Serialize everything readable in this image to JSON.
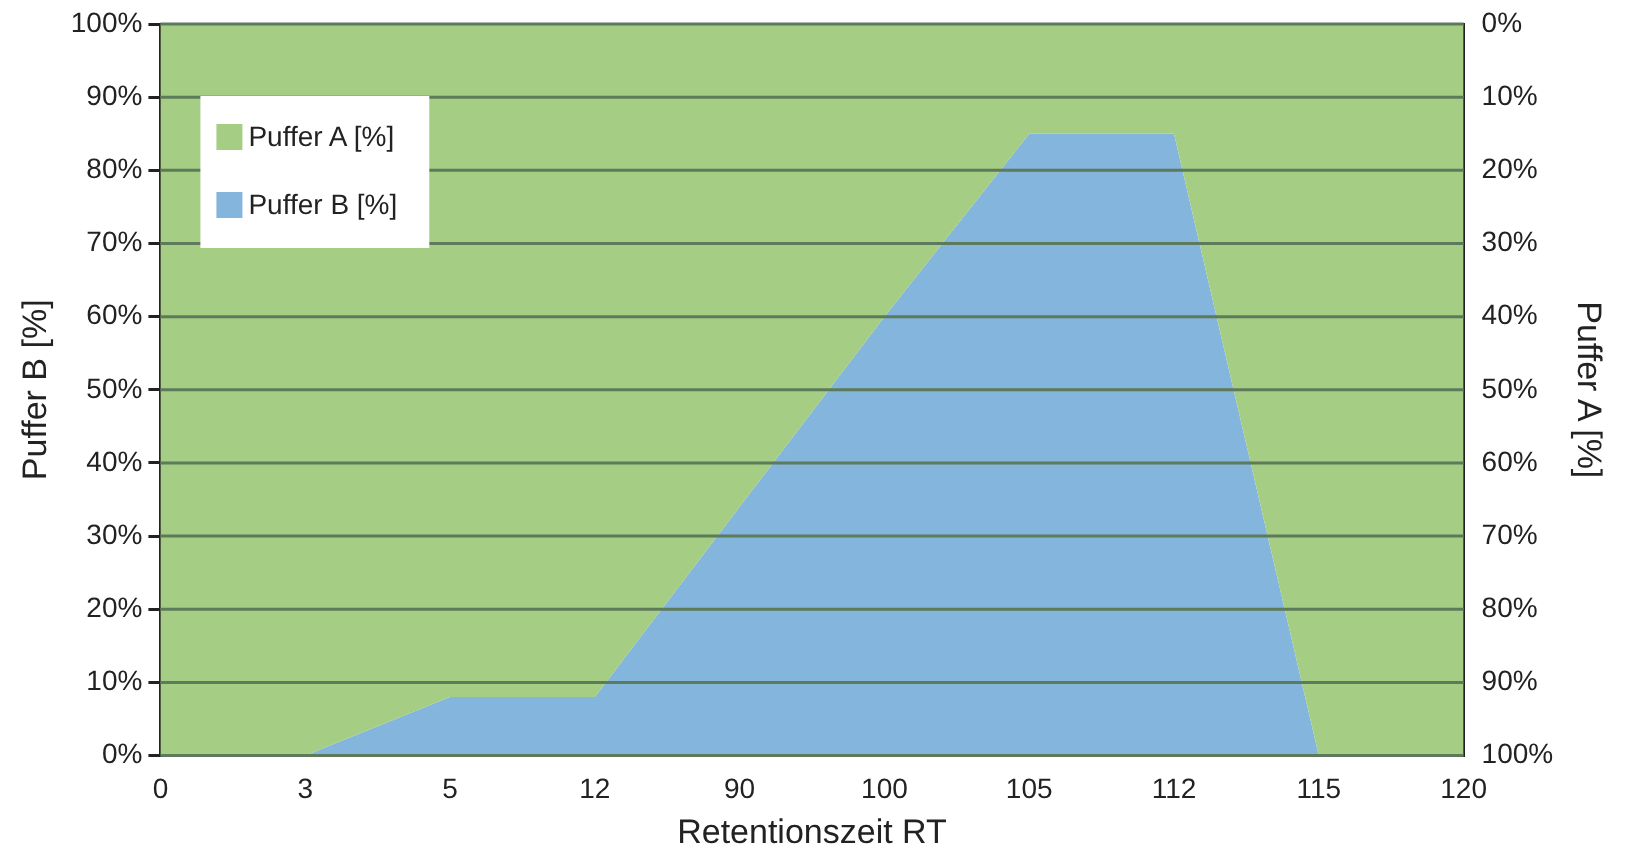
{
  "chart_data": {
    "type": "area",
    "xlabel": "Retentionszeit RT",
    "ylabel": "Puffer B [%]",
    "y2label": "Puffer A [%]",
    "categories": [
      "0",
      "3",
      "5",
      "12",
      "90",
      "100",
      "105",
      "112",
      "115",
      "120"
    ],
    "series": [
      {
        "name": "Puffer A [%]",
        "color": "#a6cd84",
        "axis": "y2",
        "values": [
          100,
          100,
          92,
          92,
          66,
          40,
          15,
          15,
          100,
          100
        ]
      },
      {
        "name": "Puffer B [%]",
        "color": "#83b5dd",
        "values": [
          0,
          0,
          8,
          8,
          34,
          60,
          85,
          85,
          0,
          0
        ]
      }
    ],
    "ylim": [
      0,
      100
    ],
    "yticks": [
      {
        "value": 0,
        "label": "0%"
      },
      {
        "value": 10,
        "label": "10%"
      },
      {
        "value": 20,
        "label": "20%"
      },
      {
        "value": 30,
        "label": "30%"
      },
      {
        "value": 40,
        "label": "40%"
      },
      {
        "value": 50,
        "label": "50%"
      },
      {
        "value": 60,
        "label": "60%"
      },
      {
        "value": 70,
        "label": "70%"
      },
      {
        "value": 80,
        "label": "80%"
      },
      {
        "value": 90,
        "label": "90%"
      },
      {
        "value": 100,
        "label": "100%"
      }
    ],
    "y2lim": [
      100,
      0
    ],
    "y2ticks": [
      {
        "value": 0,
        "label": "0%"
      },
      {
        "value": 10,
        "label": "10%"
      },
      {
        "value": 20,
        "label": "20%"
      },
      {
        "value": 30,
        "label": "30%"
      },
      {
        "value": 40,
        "label": "40%"
      },
      {
        "value": 50,
        "label": "50%"
      },
      {
        "value": 60,
        "label": "60%"
      },
      {
        "value": 70,
        "label": "70%"
      },
      {
        "value": 80,
        "label": "80%"
      },
      {
        "value": 90,
        "label": "90%"
      },
      {
        "value": 100,
        "label": "100%"
      }
    ],
    "grid": "y",
    "legend": "top left"
  }
}
